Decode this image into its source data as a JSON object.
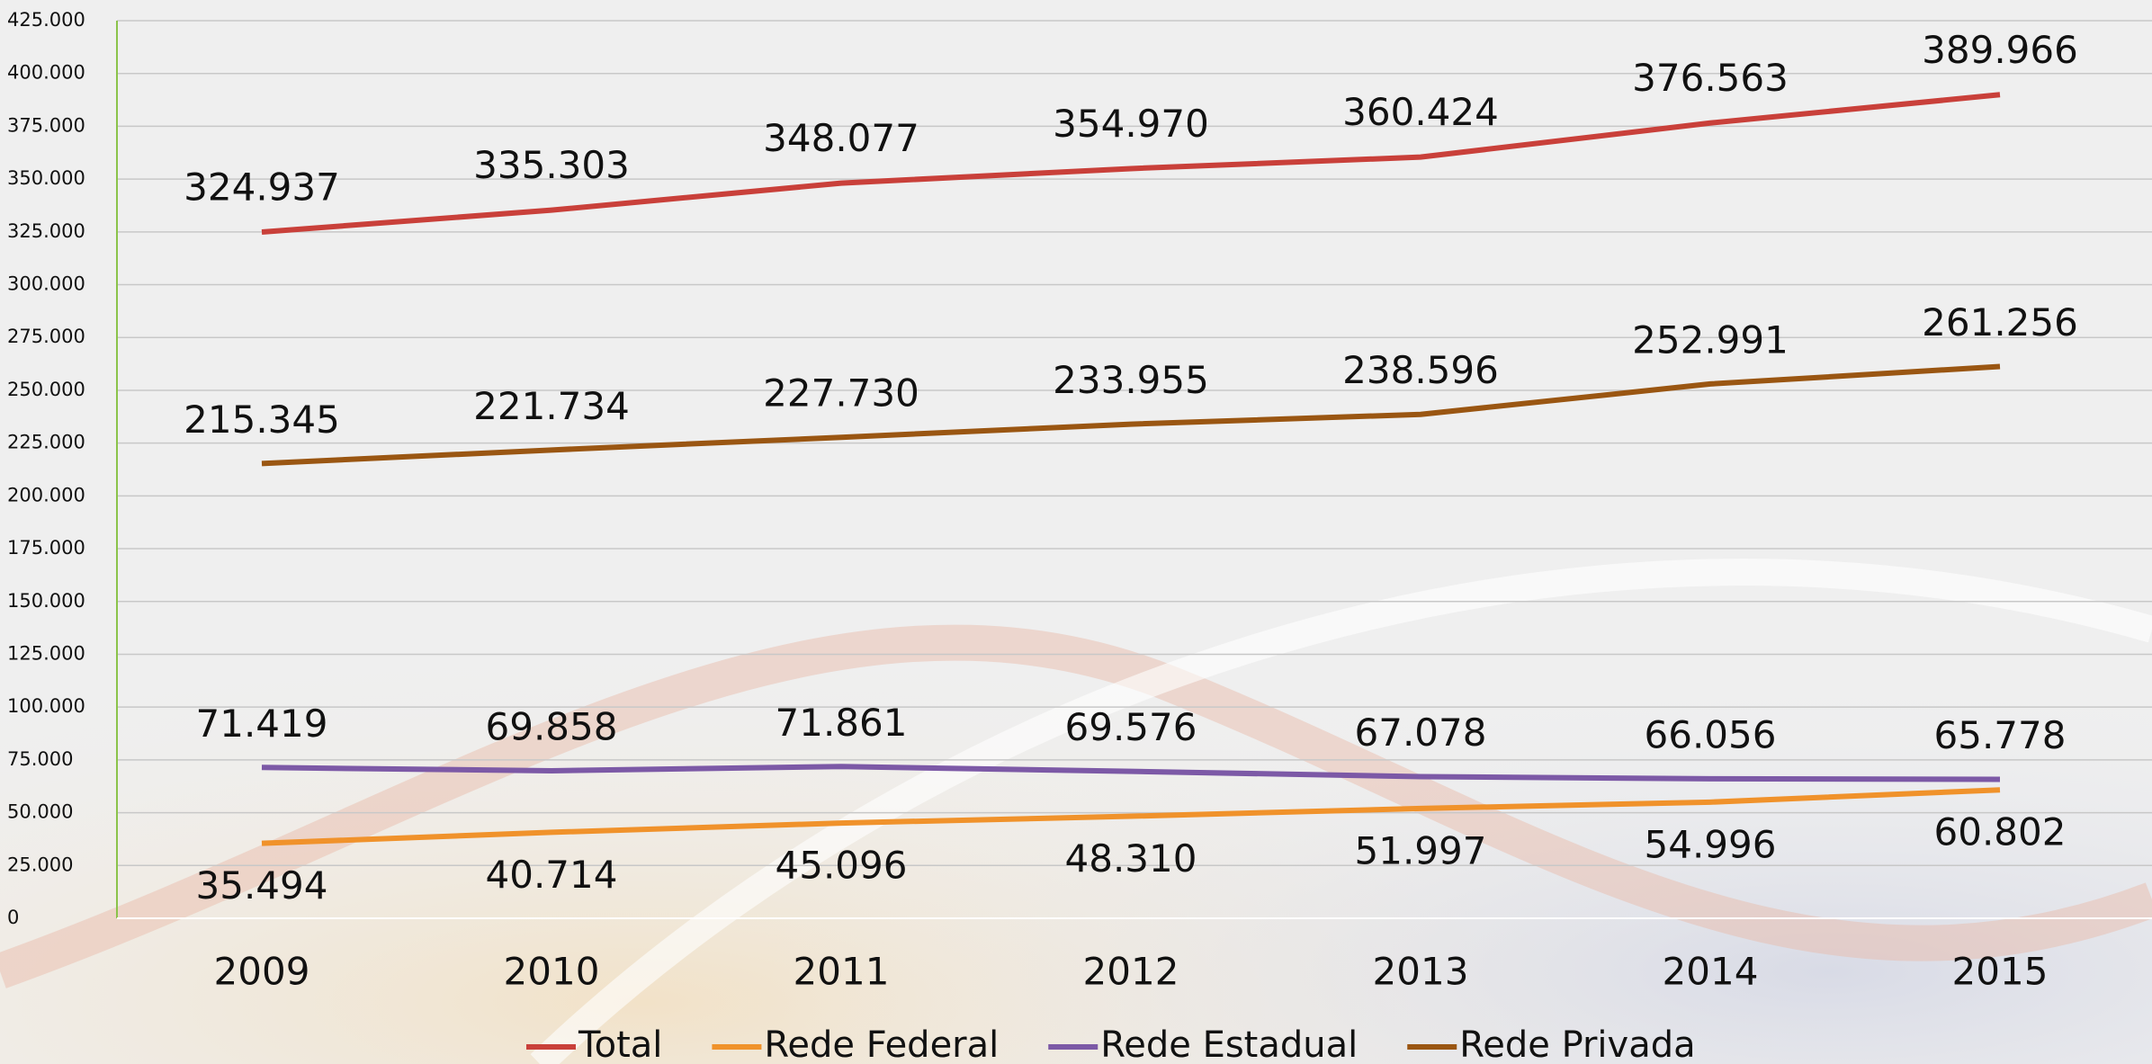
{
  "chart_data": {
    "type": "line",
    "categories": [
      "2009",
      "2010",
      "2011",
      "2012",
      "2013",
      "2014",
      "2015"
    ],
    "series": [
      {
        "name": "Total",
        "color": "#c9403a",
        "values": [
          324937,
          335303,
          348077,
          354970,
          360424,
          376563,
          389966
        ],
        "value_labels": [
          "324.937",
          "335.303",
          "348.077",
          "354.970",
          "360.424",
          "376.563",
          "389.966"
        ]
      },
      {
        "name": "Rede Federal",
        "color": "#f0922b",
        "values": [
          35494,
          40714,
          45096,
          48310,
          51997,
          54996,
          60802
        ],
        "value_labels": [
          "35.494",
          "40.714",
          "45.096",
          "48.310",
          "51.997",
          "54.996",
          "60.802"
        ]
      },
      {
        "name": "Rede Estadual",
        "color": "#7c59a6",
        "values": [
          71419,
          69858,
          71861,
          69576,
          67078,
          66056,
          65778
        ],
        "value_labels": [
          "71.419",
          "69.858",
          "71.861",
          "69.576",
          "67.078",
          "66.056",
          "65.778"
        ]
      },
      {
        "name": "Rede Privada",
        "color": "#9a5612",
        "values": [
          215345,
          221734,
          227730,
          233955,
          238596,
          252991,
          261256
        ],
        "value_labels": [
          "215.345",
          "221.734",
          "227.730",
          "233.955",
          "238.596",
          "252.991",
          "261.256"
        ]
      }
    ],
    "ylim": [
      0,
      425000
    ],
    "yticks": [
      0,
      {
        "value": 25000,
        "label": "25.000"
      },
      {
        "value": 50000,
        "label": "50.000"
      },
      {
        "value": 75000,
        "label": "75.000"
      },
      {
        "value": 100000,
        "label": "100.000"
      },
      {
        "value": 125000,
        "label": "125.000"
      },
      {
        "value": 150000,
        "label": "150.000"
      },
      {
        "value": 175000,
        "label": "175.000"
      },
      {
        "value": 200000,
        "label": "200.000"
      },
      {
        "value": 225000,
        "label": "225.000"
      },
      {
        "value": 250000,
        "label": "250.000"
      },
      {
        "value": 275000,
        "label": "275.000"
      },
      {
        "value": 300000,
        "label": "300.000"
      },
      {
        "value": 325000,
        "label": "325.000"
      },
      {
        "value": 350000,
        "label": "350.000"
      },
      {
        "value": 375000,
        "label": "375.000"
      },
      {
        "value": 400000,
        "label": "400.000"
      },
      {
        "value": 425000,
        "label": "425.000"
      }
    ],
    "grid": true,
    "legend": "bottom"
  }
}
